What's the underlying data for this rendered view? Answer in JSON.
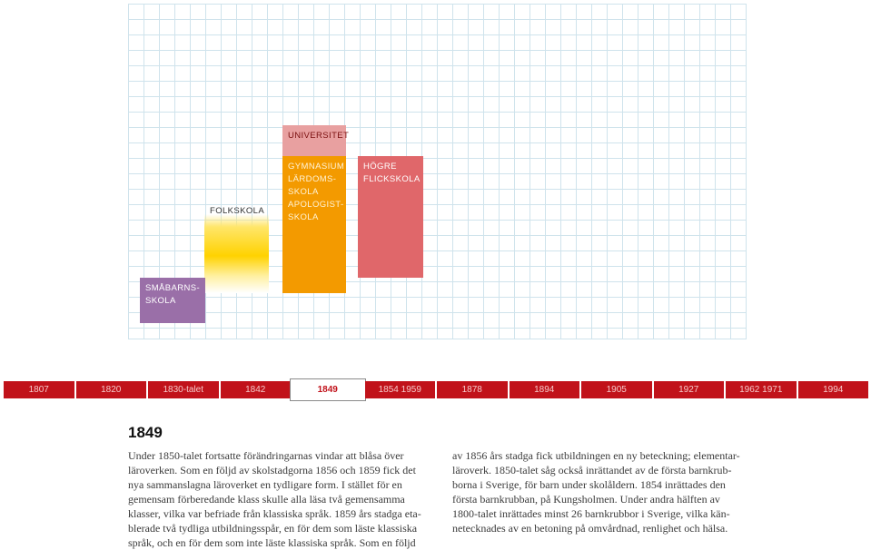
{
  "chart": {
    "blocks": {
      "universitet": [
        "UNIVERSITET"
      ],
      "gymnasium": [
        "GYMNASIUM",
        "LÄRDOMS-",
        "SKOLA",
        "APOLOGIST-",
        "SKOLA"
      ],
      "hogre_flickskola": [
        "HÖGRE",
        "FLICKSKOLA"
      ],
      "folkskola": [
        "FOLKSKOLA"
      ],
      "smabarnsskola": [
        "SMÅBARNS-",
        "SKOLA"
      ]
    }
  },
  "timeline": {
    "items": [
      "1807",
      "1820",
      "1830-talet",
      "1842",
      "1849",
      "1854 1959",
      "1878",
      "1894",
      "1905",
      "1927",
      "1962 1971",
      "1994"
    ],
    "active_index": 4
  },
  "article": {
    "heading": "1849",
    "left_lines": [
      "Under 1850-talet fortsatte förändringarnas vindar att blåsa över",
      "läroverken. Som en följd av skolstadgorna 1856 och 1859 fick det",
      "nya sammanslagna läroverket en tydligare form. I stället för en",
      "gemensam förberedande klass skulle alla läsa två gemensamma",
      "klasser, vilka var befriade från klassiska språk. 1859 års stadga eta-",
      "blerade två tydliga utbildningsspår, en för dem som läste klassiska",
      "språk, och en för dem som inte läste klassiska språk. Som en följd"
    ],
    "right_lines": [
      "av 1856 års stadga fick utbildningen en ny beteckning; elementar-",
      "läroverk. 1850-talet såg också inrättandet av de första barnkrub-",
      "borna i Sverige, för barn under skolåldern. 1854 inrättades den",
      "första barnkrubban, på Kungsholmen. Under andra hälften av",
      "1800-talet inrättades minst 26 barnkrubbor i Sverige, vilka kän-",
      "netecknades av en betoning på omvårdnad, renlighet och hälsa."
    ]
  },
  "colors": {
    "timeline_red": "#c1121a",
    "universitet": "#e8a0a0",
    "gymnasium": "#f39a00",
    "hogre_flickskola": "#e0676a",
    "folkskola": "#ffd200",
    "smabarnsskola": "#9a6fa8",
    "grid": "#cfe3ec"
  }
}
